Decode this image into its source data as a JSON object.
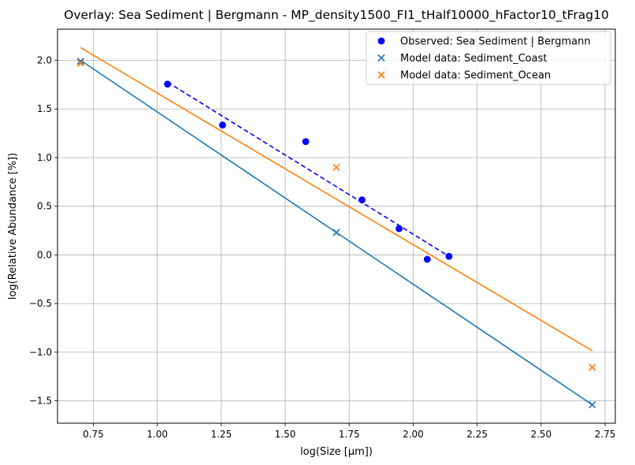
{
  "chart_data": {
    "type": "scatter",
    "title": "Overlay: Sea Sediment | Bergmann - MP_density1500_FI1_tHalf10000_hFactor10_tFrag10",
    "xlabel": "log(Size [µm])",
    "ylabel": "log(Relative Abundance [%])",
    "xlim": [
      0.61,
      2.79
    ],
    "ylim": [
      -1.73,
      2.32
    ],
    "xticks": [
      0.75,
      1.0,
      1.25,
      1.5,
      1.75,
      2.0,
      2.25,
      2.5,
      2.75
    ],
    "xtick_labels": [
      "0.75",
      "1.00",
      "1.25",
      "1.50",
      "1.75",
      "2.00",
      "2.25",
      "2.50",
      "2.75"
    ],
    "yticks": [
      -1.5,
      -1.0,
      -0.5,
      0.0,
      0.5,
      1.0,
      1.5,
      2.0
    ],
    "ytick_labels": [
      "−1.5",
      "−1.0",
      "−0.5",
      "0.0",
      "0.5",
      "1.0",
      "1.5",
      "2.0"
    ],
    "grid": true,
    "legend_position": "top-right",
    "series": [
      {
        "name": "Observed: Sea Sediment | Bergmann",
        "kind": "scatter",
        "marker": "circle",
        "color": "#0000ff",
        "x": [
          1.04,
          1.255,
          1.58,
          1.8,
          1.945,
          2.055,
          2.14
        ],
        "y": [
          1.755,
          1.335,
          1.165,
          0.565,
          0.27,
          -0.045,
          -0.015
        ]
      },
      {
        "name": "Model data: Sediment_Coast",
        "kind": "scatter",
        "marker": "x",
        "color": "#1f77b4",
        "x": [
          0.7,
          1.7,
          2.7
        ],
        "y": [
          1.99,
          0.23,
          -1.54
        ]
      },
      {
        "name": "Model data: Sediment_Ocean",
        "kind": "scatter",
        "marker": "x",
        "color": "#ff7f0e",
        "x": [
          0.7,
          1.7,
          2.7
        ],
        "y": [
          1.97,
          0.9,
          -1.155
        ]
      }
    ],
    "fit_lines": [
      {
        "color": "#0000ff",
        "dash": true,
        "x": [
          1.04,
          2.14
        ],
        "y": [
          1.775,
          -0.015
        ]
      },
      {
        "color": "#1f77b4",
        "dash": false,
        "x": [
          0.7,
          2.7
        ],
        "y": [
          2.0,
          -1.54
        ]
      },
      {
        "color": "#ff7f0e",
        "dash": false,
        "x": [
          0.7,
          2.7
        ],
        "y": [
          2.13,
          -0.985
        ]
      }
    ]
  }
}
